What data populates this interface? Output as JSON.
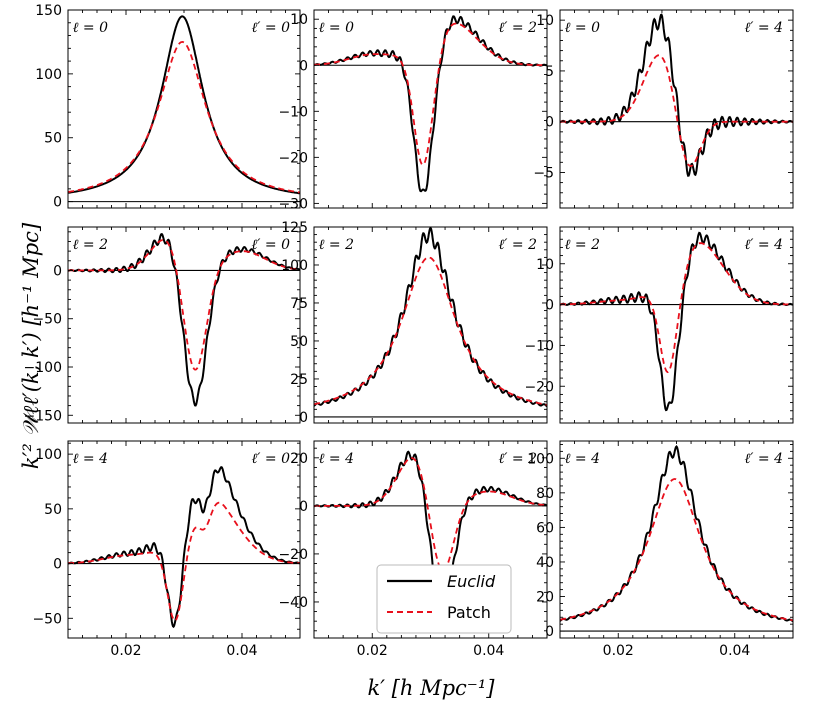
{
  "figure": {
    "ylabel": "k′² 𝒲ℓℓ′(k, k′) [h⁻¹ Mpc]",
    "xlabel": "k′ [h Mpc⁻¹]",
    "legend": {
      "placement": "lower-left of middle-bottom panel",
      "entries": [
        {
          "name": "Euclid",
          "color": "#000000",
          "style": "solid"
        },
        {
          "name": "Patch",
          "color": "#e8101c",
          "style": "dashed"
        }
      ]
    }
  },
  "chart_data": [
    {
      "type": "line",
      "row": 0,
      "col": 0,
      "kind": "peak",
      "label_left": "ℓ = 0",
      "label_right": "ℓ′ = 0",
      "xlim": [
        0.01,
        0.05
      ],
      "ylim": [
        -5,
        150
      ],
      "yticks": [
        0,
        50,
        100,
        150
      ],
      "xticks": [
        0.02,
        0.04
      ],
      "series": [
        {
          "name": "Euclid",
          "peak": 145,
          "width": 0.0044,
          "osc": 0.0
        },
        {
          "name": "Patch",
          "peak": 125,
          "width": 0.005
        }
      ]
    },
    {
      "type": "line",
      "row": 0,
      "col": 1,
      "kind": "anti",
      "label_left": "ℓ = 0",
      "label_right": "ℓ′ = 2",
      "xlim": [
        0.01,
        0.05
      ],
      "ylim": [
        -31,
        12
      ],
      "yticks": [
        -30,
        -20,
        -10,
        0,
        10
      ],
      "xticks": [
        0.02,
        0.04
      ],
      "series": [
        {
          "name": "Euclid",
          "neg_min": -29.5,
          "pos_max": 10.5,
          "left_bump": 2.5,
          "osc": 0.6
        },
        {
          "name": "Patch",
          "neg_min": -23,
          "pos_max": 9.5,
          "left_bump": 2.3
        }
      ]
    },
    {
      "type": "line",
      "row": 0,
      "col": 2,
      "kind": "anti-flip",
      "label_left": "ℓ = 0",
      "label_right": "ℓ′ = 4",
      "xlim": [
        0.01,
        0.05
      ],
      "ylim": [
        -8.5,
        11
      ],
      "yticks": [
        -5,
        0,
        5,
        10
      ],
      "xticks": [
        0.02,
        0.04
      ],
      "series": [
        {
          "name": "Euclid",
          "pos_max": 10.5,
          "neg_min": -8.0,
          "osc": 0.5
        },
        {
          "name": "Patch",
          "pos_max": 7.0,
          "neg_min": -6.5
        }
      ]
    },
    {
      "type": "line",
      "row": 1,
      "col": 0,
      "kind": "anti-flip",
      "label_left": "ℓ = 2",
      "label_right": "ℓ′ = 0",
      "xlim": [
        0.01,
        0.05
      ],
      "ylim": [
        -158,
        45
      ],
      "yticks": [
        -150,
        -100,
        -50,
        0
      ],
      "xticks": [
        0.02,
        0.04
      ],
      "series": [
        {
          "name": "Euclid",
          "pos_max": 40,
          "neg_min": -152,
          "right_bump": 22,
          "osc": 3
        },
        {
          "name": "Patch",
          "pos_max": 37,
          "neg_min": -118,
          "right_bump": 20
        }
      ]
    },
    {
      "type": "line",
      "row": 1,
      "col": 1,
      "kind": "peak",
      "label_left": "ℓ = 2",
      "label_right": "ℓ′ = 2",
      "xlim": [
        0.01,
        0.05
      ],
      "ylim": [
        -4,
        125
      ],
      "yticks": [
        0,
        25,
        50,
        75,
        100,
        125
      ],
      "xticks": [
        0.02,
        0.04
      ],
      "series": [
        {
          "name": "Euclid",
          "peak": 120,
          "width": 0.0052,
          "osc": 3
        },
        {
          "name": "Patch",
          "peak": 105,
          "width": 0.0058
        }
      ]
    },
    {
      "type": "line",
      "row": 1,
      "col": 2,
      "kind": "anti",
      "label_left": "ℓ = 2",
      "label_right": "ℓ′ = 4",
      "xlim": [
        0.01,
        0.05
      ],
      "ylim": [
        -29,
        19
      ],
      "yticks": [
        -20,
        -10,
        0,
        10
      ],
      "xticks": [
        0.02,
        0.04
      ],
      "series": [
        {
          "name": "Euclid",
          "neg_min": -27.5,
          "pos_max": 17,
          "left_bump": 1.0,
          "osc": 0.9
        },
        {
          "name": "Patch",
          "neg_min": -18,
          "pos_max": 15.5,
          "left_bump": 0.9
        }
      ]
    },
    {
      "type": "line",
      "row": 2,
      "col": 0,
      "kind": "anti",
      "label_left": "ℓ = 4",
      "label_right": "ℓ′ = 0",
      "xlim": [
        0.01,
        0.05
      ],
      "ylim": [
        -68,
        112
      ],
      "yticks": [
        -50,
        0,
        50,
        100
      ],
      "xticks": [
        0.02,
        0.04
      ],
      "series": [
        {
          "name": "Euclid",
          "neg_min": -62,
          "pos_max": 103,
          "left_bump": 8,
          "right_bump": 7,
          "osc": 2.5
        },
        {
          "name": "Patch",
          "neg_min": -58,
          "pos_max": 65,
          "left_bump": 7,
          "right_bump": 6
        }
      ]
    },
    {
      "type": "line",
      "row": 2,
      "col": 1,
      "kind": "anti-flip",
      "label_left": "ℓ = 4",
      "label_right": "ℓ′ = 2",
      "xlim": [
        0.01,
        0.05
      ],
      "ylim": [
        -55,
        27
      ],
      "yticks": [
        -40,
        -20,
        0,
        20
      ],
      "xticks": [
        0.02,
        0.04
      ],
      "series": [
        {
          "name": "Euclid",
          "pos_max": 24,
          "neg_min": -52,
          "right_bump": 7,
          "osc": 1.2
        },
        {
          "name": "Patch",
          "pos_max": 22,
          "neg_min": -35,
          "right_bump": 6
        }
      ]
    },
    {
      "type": "line",
      "row": 2,
      "col": 2,
      "kind": "peak",
      "label_left": "ℓ = 4",
      "label_right": "ℓ′ = 4",
      "xlim": [
        0.01,
        0.05
      ],
      "ylim": [
        -4,
        110
      ],
      "yticks": [
        0,
        20,
        40,
        60,
        80,
        100
      ],
      "xticks": [
        0.02,
        0.04
      ],
      "series": [
        {
          "name": "Euclid",
          "peak": 104,
          "width": 0.005,
          "osc": 2
        },
        {
          "name": "Patch",
          "peak": 88,
          "width": 0.0056
        }
      ]
    }
  ]
}
